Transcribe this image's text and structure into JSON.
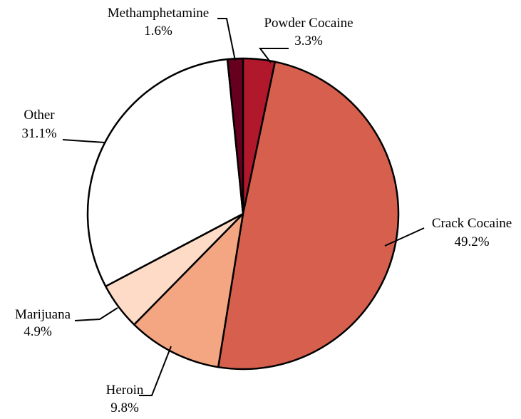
{
  "chart_data": {
    "type": "pie",
    "start_angle_deg": 0,
    "direction": "clockwise",
    "slices": [
      {
        "label": "Powder Cocaine",
        "value": 3.3,
        "value_label": "3.3%",
        "color": "#b2182b"
      },
      {
        "label": "Crack Cocaine",
        "value": 49.2,
        "value_label": "49.2%",
        "color": "#d6604d"
      },
      {
        "label": "Heroin",
        "value": 9.8,
        "value_label": "9.8%",
        "color": "#f4a582"
      },
      {
        "label": "Marijuana",
        "value": 4.9,
        "value_label": "4.9%",
        "color": "#fddbc7"
      },
      {
        "label": "Other",
        "value": 31.1,
        "value_label": "31.1%",
        "color": "#ffffff"
      },
      {
        "label": "Methamphetamine",
        "value": 1.6,
        "value_label": "1.6%",
        "color": "#67001f"
      }
    ]
  }
}
